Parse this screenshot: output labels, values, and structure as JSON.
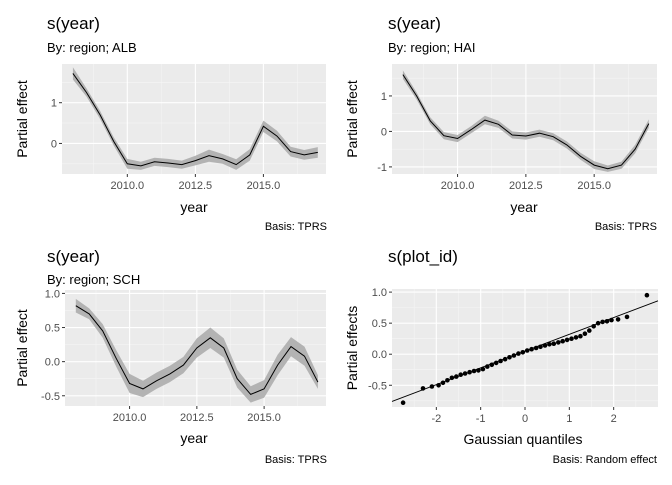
{
  "colors": {
    "panel_bg": "#ebebeb",
    "grid_major": "#ffffff",
    "grid_minor": "#f5f5f5",
    "ribbon": "#b3b3b3",
    "line": "#000000",
    "point": "#000000",
    "text_dark": "#000000",
    "tick_text": "#4d4d4d"
  },
  "chart_data": [
    {
      "type": "area",
      "title": "s(year)",
      "subtitle": "By: region; ALB",
      "xlabel": "year",
      "ylabel": "Partial effect",
      "caption": "Basis: TPRS",
      "xlim": [
        2007.6,
        2017.3
      ],
      "ylim": [
        -0.75,
        1.95
      ],
      "xticks": [
        2010.0,
        2012.5,
        2015.0
      ],
      "xtick_labels": [
        "2010.0",
        "2012.5",
        "2015.0"
      ],
      "yticks": [
        0,
        1
      ],
      "ytick_labels": [
        "0",
        "1"
      ],
      "grid": true,
      "series": [
        {
          "x": [
            2008.0,
            2008.5,
            2009.0,
            2009.5,
            2010.0,
            2010.5,
            2011.0,
            2011.5,
            2012.0,
            2012.5,
            2013.0,
            2013.5,
            2014.0,
            2014.5,
            2015.0,
            2015.5,
            2016.0,
            2016.5,
            2017.0
          ],
          "y": [
            1.72,
            1.25,
            0.7,
            0.05,
            -0.5,
            -0.55,
            -0.45,
            -0.48,
            -0.52,
            -0.42,
            -0.3,
            -0.38,
            -0.52,
            -0.28,
            0.42,
            0.18,
            -0.2,
            -0.28,
            -0.22
          ],
          "lower": [
            1.57,
            1.15,
            0.6,
            -0.05,
            -0.62,
            -0.65,
            -0.55,
            -0.58,
            -0.62,
            -0.54,
            -0.45,
            -0.5,
            -0.65,
            -0.42,
            0.28,
            0.05,
            -0.32,
            -0.4,
            -0.35
          ],
          "upper": [
            1.87,
            1.35,
            0.8,
            0.15,
            -0.38,
            -0.45,
            -0.35,
            -0.38,
            -0.42,
            -0.3,
            -0.15,
            -0.26,
            -0.39,
            -0.14,
            0.56,
            0.31,
            -0.08,
            -0.16,
            -0.09
          ]
        }
      ]
    },
    {
      "type": "area",
      "title": "s(year)",
      "subtitle": "By: region; HAI",
      "xlabel": "year",
      "ylabel": "Partial effect",
      "caption": "Basis: TPRS",
      "xlim": [
        2007.6,
        2017.3
      ],
      "ylim": [
        -1.2,
        1.9
      ],
      "xticks": [
        2010.0,
        2012.5,
        2015.0
      ],
      "xtick_labels": [
        "2010.0",
        "2012.5",
        "2015.0"
      ],
      "yticks": [
        -1,
        0,
        1
      ],
      "ytick_labels": [
        "-1",
        "0",
        "1"
      ],
      "grid": true,
      "series": [
        {
          "x": [
            2008.0,
            2008.5,
            2009.0,
            2009.5,
            2010.0,
            2010.5,
            2011.0,
            2011.5,
            2012.0,
            2012.5,
            2013.0,
            2013.5,
            2014.0,
            2014.5,
            2015.0,
            2015.5,
            2016.0,
            2016.5,
            2017.0
          ],
          "y": [
            1.6,
            1.0,
            0.3,
            -0.12,
            -0.2,
            0.05,
            0.32,
            0.2,
            -0.1,
            -0.13,
            -0.05,
            -0.15,
            -0.38,
            -0.7,
            -0.95,
            -1.05,
            -0.95,
            -0.5,
            0.22
          ],
          "lower": [
            1.48,
            0.9,
            0.2,
            -0.22,
            -0.3,
            -0.05,
            0.2,
            0.1,
            -0.2,
            -0.23,
            -0.15,
            -0.25,
            -0.48,
            -0.8,
            -1.06,
            -1.14,
            -1.05,
            -0.62,
            0.1
          ],
          "upper": [
            1.72,
            1.1,
            0.4,
            -0.02,
            -0.1,
            0.15,
            0.44,
            0.3,
            0.0,
            -0.03,
            0.05,
            -0.05,
            -0.28,
            -0.6,
            -0.84,
            -0.96,
            -0.85,
            -0.38,
            0.34
          ]
        }
      ]
    },
    {
      "type": "area",
      "title": "s(year)",
      "subtitle": "By: region; SCH",
      "xlabel": "year",
      "ylabel": "Partial effect",
      "caption": "Basis: TPRS",
      "xlim": [
        2007.6,
        2017.3
      ],
      "ylim": [
        -0.65,
        1.05
      ],
      "xticks": [
        2010.0,
        2012.5,
        2015.0
      ],
      "xtick_labels": [
        "2010.0",
        "2012.5",
        "2015.0"
      ],
      "yticks": [
        -0.5,
        0.0,
        0.5,
        1.0
      ],
      "ytick_labels": [
        "-0.5",
        "0.0",
        "0.5",
        "1.0"
      ],
      "grid": true,
      "series": [
        {
          "x": [
            2008.0,
            2008.5,
            2009.0,
            2009.5,
            2010.0,
            2010.5,
            2011.0,
            2011.5,
            2012.0,
            2012.5,
            2013.0,
            2013.5,
            2014.0,
            2014.5,
            2015.0,
            2015.5,
            2016.0,
            2016.5,
            2017.0
          ],
          "y": [
            0.82,
            0.7,
            0.45,
            0.05,
            -0.32,
            -0.4,
            -0.28,
            -0.18,
            -0.05,
            0.2,
            0.35,
            0.2,
            -0.25,
            -0.48,
            -0.4,
            -0.05,
            0.22,
            0.08,
            -0.3
          ],
          "lower": [
            0.72,
            0.62,
            0.35,
            -0.07,
            -0.46,
            -0.52,
            -0.4,
            -0.3,
            -0.17,
            0.06,
            0.2,
            0.06,
            -0.38,
            -0.6,
            -0.53,
            -0.2,
            0.08,
            -0.06,
            -0.4
          ],
          "upper": [
            0.92,
            0.78,
            0.55,
            0.17,
            -0.18,
            -0.28,
            -0.16,
            -0.06,
            0.07,
            0.34,
            0.5,
            0.34,
            -0.12,
            -0.36,
            -0.27,
            0.1,
            0.36,
            0.22,
            -0.2
          ]
        }
      ]
    },
    {
      "type": "scatter",
      "title": "s(plot_id)",
      "subtitle": "",
      "xlabel": "Gaussian quantiles",
      "ylabel": "Partial effects",
      "caption": "Basis: Random effect",
      "xlim": [
        -3.0,
        3.0
      ],
      "ylim": [
        -0.85,
        1.05
      ],
      "xticks": [
        -2,
        -1,
        0,
        1,
        2
      ],
      "xtick_labels": [
        "-2",
        "-1",
        "0",
        "1",
        "2"
      ],
      "yticks": [
        -0.5,
        0.0,
        0.5,
        1.0
      ],
      "ytick_labels": [
        "-0.5",
        "0.0",
        "0.5",
        "1.0"
      ],
      "grid": true,
      "reference_line": {
        "intercept": 0.05,
        "slope": 0.27
      },
      "points": {
        "x": [
          -2.75,
          -2.3,
          -2.1,
          -1.95,
          -1.85,
          -1.75,
          -1.65,
          -1.55,
          -1.45,
          -1.35,
          -1.25,
          -1.15,
          -1.05,
          -0.95,
          -0.85,
          -0.75,
          -0.65,
          -0.55,
          -0.45,
          -0.35,
          -0.25,
          -0.15,
          -0.05,
          0.05,
          0.15,
          0.25,
          0.35,
          0.45,
          0.55,
          0.65,
          0.75,
          0.85,
          0.95,
          1.05,
          1.15,
          1.25,
          1.35,
          1.45,
          1.55,
          1.65,
          1.75,
          1.85,
          1.95,
          2.1,
          2.3,
          2.75
        ],
        "y": [
          -0.78,
          -0.55,
          -0.52,
          -0.5,
          -0.46,
          -0.42,
          -0.38,
          -0.36,
          -0.33,
          -0.31,
          -0.29,
          -0.27,
          -0.26,
          -0.24,
          -0.2,
          -0.17,
          -0.14,
          -0.11,
          -0.08,
          -0.05,
          -0.02,
          0.01,
          0.03,
          0.06,
          0.08,
          0.1,
          0.12,
          0.14,
          0.16,
          0.17,
          0.19,
          0.21,
          0.23,
          0.25,
          0.27,
          0.29,
          0.33,
          0.38,
          0.45,
          0.5,
          0.52,
          0.53,
          0.55,
          0.56,
          0.6,
          0.95
        ]
      }
    }
  ]
}
